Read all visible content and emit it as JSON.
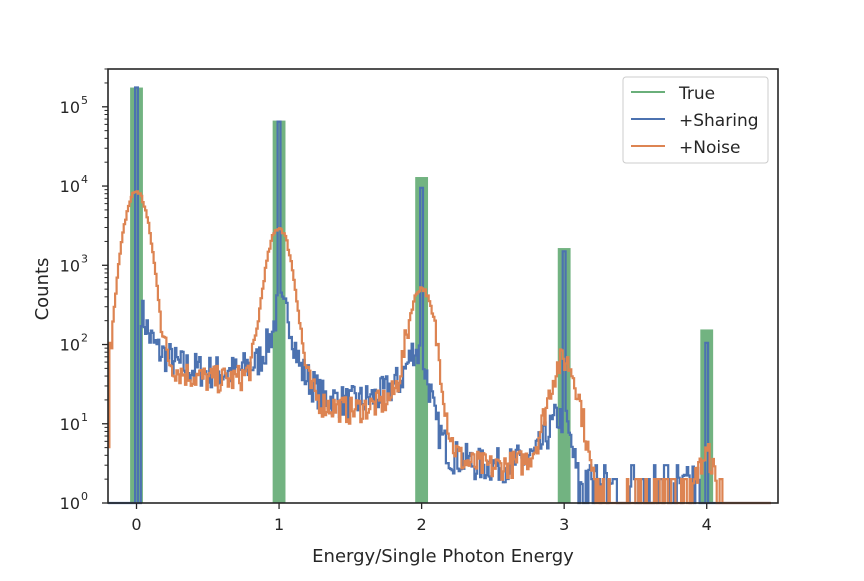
{
  "chart_data": {
    "type": "histogram",
    "xlabel": "Energy/Single Photon Energy",
    "ylabel": "Counts",
    "xlim": [
      -0.2,
      4.5
    ],
    "ylim": [
      1,
      300000
    ],
    "yscale": "log",
    "x_ticks": [
      0,
      1,
      2,
      3,
      4
    ],
    "x_tick_labels": [
      "0",
      "1",
      "2",
      "3",
      "4"
    ],
    "y_ticks": [
      1,
      10,
      100,
      1000,
      10000,
      100000
    ],
    "y_tick_labels": [
      {
        "base": "10",
        "exp": "0"
      },
      {
        "base": "10",
        "exp": "1"
      },
      {
        "base": "10",
        "exp": "2"
      },
      {
        "base": "10",
        "exp": "3"
      },
      {
        "base": "10",
        "exp": "4"
      },
      {
        "base": "10",
        "exp": "5"
      }
    ],
    "grid": false,
    "legend": {
      "placement": "upper right",
      "entries": [
        "True",
        "+Sharing",
        "+Noise"
      ]
    },
    "series": [
      {
        "name": "True",
        "color": "#6aaf7a",
        "style": "filled-bars",
        "bin_width": 0.09,
        "bars": [
          {
            "x": 0,
            "y": 175000
          },
          {
            "x": 1,
            "y": 67000
          },
          {
            "x": 2,
            "y": 13000
          },
          {
            "x": 3,
            "y": 1650
          },
          {
            "x": 4,
            "y": 155
          }
        ]
      },
      {
        "name": "+Sharing",
        "color": "#4c72b0",
        "style": "step",
        "peaks": [
          {
            "x": 0,
            "y": 175000
          },
          {
            "x": 1,
            "y": 65000
          },
          {
            "x": 2,
            "y": 9500
          },
          {
            "x": 3,
            "y": 1500
          },
          {
            "x": 4,
            "y": 105
          }
        ],
        "continuum": [
          [
            0.06,
            160
          ],
          [
            0.15,
            85
          ],
          [
            0.3,
            55
          ],
          [
            0.5,
            45
          ],
          [
            0.7,
            45
          ],
          [
            0.85,
            60
          ],
          [
            0.95,
            120
          ],
          [
            1.06,
            250
          ],
          [
            1.15,
            50
          ],
          [
            1.3,
            22
          ],
          [
            1.5,
            18
          ],
          [
            1.7,
            22
          ],
          [
            1.85,
            35
          ],
          [
            1.95,
            90
          ],
          [
            2.06,
            25
          ],
          [
            2.1,
            10
          ],
          [
            2.2,
            4
          ],
          [
            2.4,
            3
          ],
          [
            2.6,
            3
          ],
          [
            2.8,
            4
          ],
          [
            2.95,
            12
          ],
          [
            3.05,
            5
          ],
          [
            3.1,
            2
          ],
          [
            3.3,
            1.5
          ],
          [
            3.5,
            1
          ],
          [
            3.7,
            1
          ],
          [
            3.9,
            2
          ]
        ]
      },
      {
        "name": "+Noise",
        "color": "#dd8452",
        "style": "step",
        "peaks": [
          {
            "x": 0,
            "y": 8500,
            "sigma": 0.06
          },
          {
            "x": 1,
            "y": 2900,
            "sigma": 0.06
          },
          {
            "x": 2,
            "y": 500,
            "sigma": 0.06
          },
          {
            "x": 3,
            "y": 60,
            "sigma": 0.07
          },
          {
            "x": 4,
            "y": 4,
            "sigma": 0.05
          }
        ],
        "continuum": [
          [
            0.15,
            90
          ],
          [
            0.3,
            55
          ],
          [
            0.5,
            45
          ],
          [
            0.7,
            45
          ],
          [
            0.85,
            55
          ],
          [
            1.15,
            45
          ],
          [
            1.3,
            22
          ],
          [
            1.5,
            18
          ],
          [
            1.7,
            22
          ],
          [
            1.85,
            30
          ],
          [
            2.15,
            8
          ],
          [
            2.3,
            4
          ],
          [
            2.5,
            3.5
          ],
          [
            2.7,
            4
          ],
          [
            2.85,
            6
          ],
          [
            3.15,
            1.5
          ],
          [
            3.4,
            1
          ],
          [
            3.6,
            1
          ],
          [
            3.8,
            1
          ]
        ]
      }
    ]
  }
}
